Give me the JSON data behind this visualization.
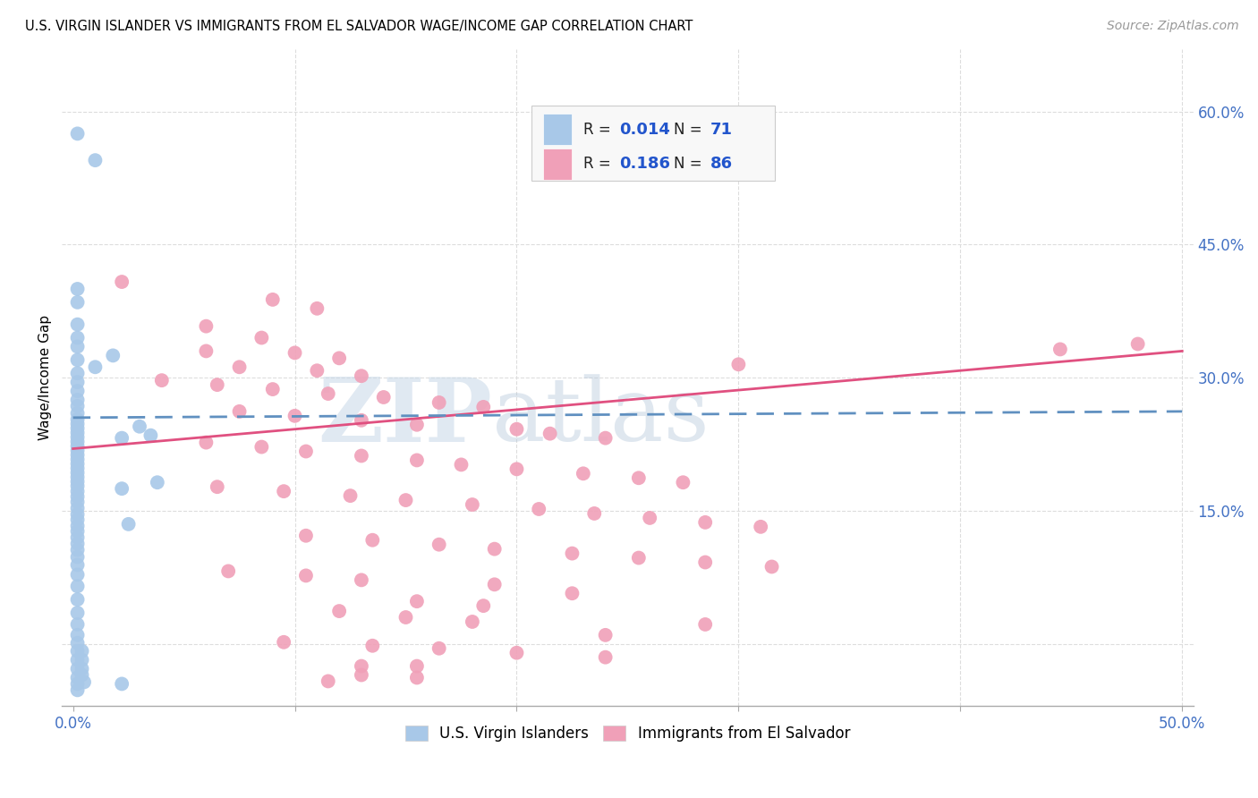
{
  "title": "U.S. VIRGIN ISLANDER VS IMMIGRANTS FROM EL SALVADOR WAGE/INCOME GAP CORRELATION CHART",
  "source": "Source: ZipAtlas.com",
  "ylabel": "Wage/Income Gap",
  "xlim": [
    0.0,
    0.5
  ],
  "ylim": [
    -0.05,
    0.65
  ],
  "yticks": [
    0.0,
    0.15,
    0.3,
    0.45,
    0.6
  ],
  "ytick_labels": [
    "",
    "15.0%",
    "30.0%",
    "45.0%",
    "60.0%"
  ],
  "xticks": [
    0.0,
    0.1,
    0.2,
    0.3,
    0.4,
    0.5
  ],
  "xtick_labels": [
    "0.0%",
    "",
    "",
    "",
    "",
    "50.0%"
  ],
  "blue_R": 0.014,
  "blue_N": 71,
  "pink_R": 0.186,
  "pink_N": 86,
  "blue_color": "#A8C8E8",
  "pink_color": "#F0A0B8",
  "blue_line_color": "#6090C0",
  "pink_line_color": "#E05080",
  "watermark_zip": "ZIP",
  "watermark_atlas": "atlas",
  "legend_label_blue": "U.S. Virgin Islanders",
  "legend_label_pink": "Immigrants from El Salvador",
  "blue_line": [
    [
      0.0,
      0.255
    ],
    [
      0.5,
      0.262
    ]
  ],
  "pink_line": [
    [
      0.0,
      0.22
    ],
    [
      0.5,
      0.33
    ]
  ],
  "blue_scatter": [
    [
      0.002,
      0.575
    ],
    [
      0.01,
      0.545
    ],
    [
      0.002,
      0.4
    ],
    [
      0.002,
      0.385
    ],
    [
      0.002,
      0.36
    ],
    [
      0.002,
      0.345
    ],
    [
      0.002,
      0.335
    ],
    [
      0.002,
      0.32
    ],
    [
      0.01,
      0.312
    ],
    [
      0.002,
      0.305
    ],
    [
      0.002,
      0.295
    ],
    [
      0.002,
      0.285
    ],
    [
      0.002,
      0.275
    ],
    [
      0.002,
      0.268
    ],
    [
      0.002,
      0.26
    ],
    [
      0.002,
      0.253
    ],
    [
      0.002,
      0.248
    ],
    [
      0.002,
      0.243
    ],
    [
      0.002,
      0.238
    ],
    [
      0.002,
      0.233
    ],
    [
      0.002,
      0.228
    ],
    [
      0.002,
      0.223
    ],
    [
      0.002,
      0.218
    ],
    [
      0.002,
      0.213
    ],
    [
      0.002,
      0.208
    ],
    [
      0.002,
      0.203
    ],
    [
      0.002,
      0.198
    ],
    [
      0.002,
      0.193
    ],
    [
      0.002,
      0.188
    ],
    [
      0.002,
      0.183
    ],
    [
      0.002,
      0.178
    ],
    [
      0.002,
      0.172
    ],
    [
      0.002,
      0.166
    ],
    [
      0.002,
      0.16
    ],
    [
      0.002,
      0.153
    ],
    [
      0.002,
      0.146
    ],
    [
      0.002,
      0.14
    ],
    [
      0.002,
      0.133
    ],
    [
      0.002,
      0.127
    ],
    [
      0.002,
      0.12
    ],
    [
      0.002,
      0.113
    ],
    [
      0.002,
      0.106
    ],
    [
      0.002,
      0.098
    ],
    [
      0.002,
      0.089
    ],
    [
      0.002,
      0.078
    ],
    [
      0.002,
      0.065
    ],
    [
      0.002,
      0.05
    ],
    [
      0.002,
      0.035
    ],
    [
      0.002,
      0.022
    ],
    [
      0.002,
      0.01
    ],
    [
      0.002,
      0.001
    ],
    [
      0.018,
      0.325
    ],
    [
      0.022,
      0.232
    ],
    [
      0.022,
      0.175
    ],
    [
      0.025,
      0.135
    ],
    [
      0.03,
      0.245
    ],
    [
      0.035,
      0.235
    ],
    [
      0.038,
      0.182
    ],
    [
      0.002,
      -0.008
    ],
    [
      0.004,
      -0.008
    ],
    [
      0.002,
      -0.018
    ],
    [
      0.004,
      -0.018
    ],
    [
      0.002,
      -0.028
    ],
    [
      0.004,
      -0.028
    ],
    [
      0.002,
      -0.038
    ],
    [
      0.004,
      -0.035
    ],
    [
      0.002,
      -0.045
    ],
    [
      0.005,
      -0.043
    ],
    [
      0.002,
      -0.052
    ],
    [
      0.022,
      -0.045
    ]
  ],
  "pink_scatter": [
    [
      0.022,
      0.408
    ],
    [
      0.09,
      0.388
    ],
    [
      0.11,
      0.378
    ],
    [
      0.06,
      0.358
    ],
    [
      0.085,
      0.345
    ],
    [
      0.06,
      0.33
    ],
    [
      0.1,
      0.328
    ],
    [
      0.12,
      0.322
    ],
    [
      0.075,
      0.312
    ],
    [
      0.11,
      0.308
    ],
    [
      0.13,
      0.302
    ],
    [
      0.04,
      0.297
    ],
    [
      0.065,
      0.292
    ],
    [
      0.09,
      0.287
    ],
    [
      0.115,
      0.282
    ],
    [
      0.14,
      0.278
    ],
    [
      0.165,
      0.272
    ],
    [
      0.185,
      0.267
    ],
    [
      0.075,
      0.262
    ],
    [
      0.1,
      0.257
    ],
    [
      0.13,
      0.252
    ],
    [
      0.155,
      0.247
    ],
    [
      0.2,
      0.242
    ],
    [
      0.215,
      0.237
    ],
    [
      0.24,
      0.232
    ],
    [
      0.06,
      0.227
    ],
    [
      0.085,
      0.222
    ],
    [
      0.105,
      0.217
    ],
    [
      0.13,
      0.212
    ],
    [
      0.155,
      0.207
    ],
    [
      0.175,
      0.202
    ],
    [
      0.2,
      0.197
    ],
    [
      0.23,
      0.192
    ],
    [
      0.255,
      0.187
    ],
    [
      0.275,
      0.182
    ],
    [
      0.065,
      0.177
    ],
    [
      0.095,
      0.172
    ],
    [
      0.125,
      0.167
    ],
    [
      0.15,
      0.162
    ],
    [
      0.18,
      0.157
    ],
    [
      0.21,
      0.152
    ],
    [
      0.235,
      0.147
    ],
    [
      0.26,
      0.142
    ],
    [
      0.285,
      0.137
    ],
    [
      0.31,
      0.132
    ],
    [
      0.105,
      0.122
    ],
    [
      0.135,
      0.117
    ],
    [
      0.165,
      0.112
    ],
    [
      0.19,
      0.107
    ],
    [
      0.225,
      0.102
    ],
    [
      0.255,
      0.097
    ],
    [
      0.285,
      0.092
    ],
    [
      0.315,
      0.087
    ],
    [
      0.07,
      0.082
    ],
    [
      0.105,
      0.077
    ],
    [
      0.13,
      0.072
    ],
    [
      0.19,
      0.067
    ],
    [
      0.225,
      0.057
    ],
    [
      0.155,
      0.048
    ],
    [
      0.185,
      0.043
    ],
    [
      0.12,
      0.037
    ],
    [
      0.15,
      0.03
    ],
    [
      0.18,
      0.025
    ],
    [
      0.285,
      0.022
    ],
    [
      0.095,
      0.002
    ],
    [
      0.135,
      -0.002
    ],
    [
      0.165,
      -0.005
    ],
    [
      0.2,
      -0.01
    ],
    [
      0.24,
      -0.015
    ],
    [
      0.24,
      0.01
    ],
    [
      0.13,
      -0.025
    ],
    [
      0.155,
      -0.025
    ],
    [
      0.13,
      -0.035
    ],
    [
      0.155,
      -0.038
    ],
    [
      0.115,
      -0.042
    ],
    [
      0.3,
      0.315
    ],
    [
      0.445,
      0.332
    ],
    [
      0.48,
      0.338
    ]
  ]
}
